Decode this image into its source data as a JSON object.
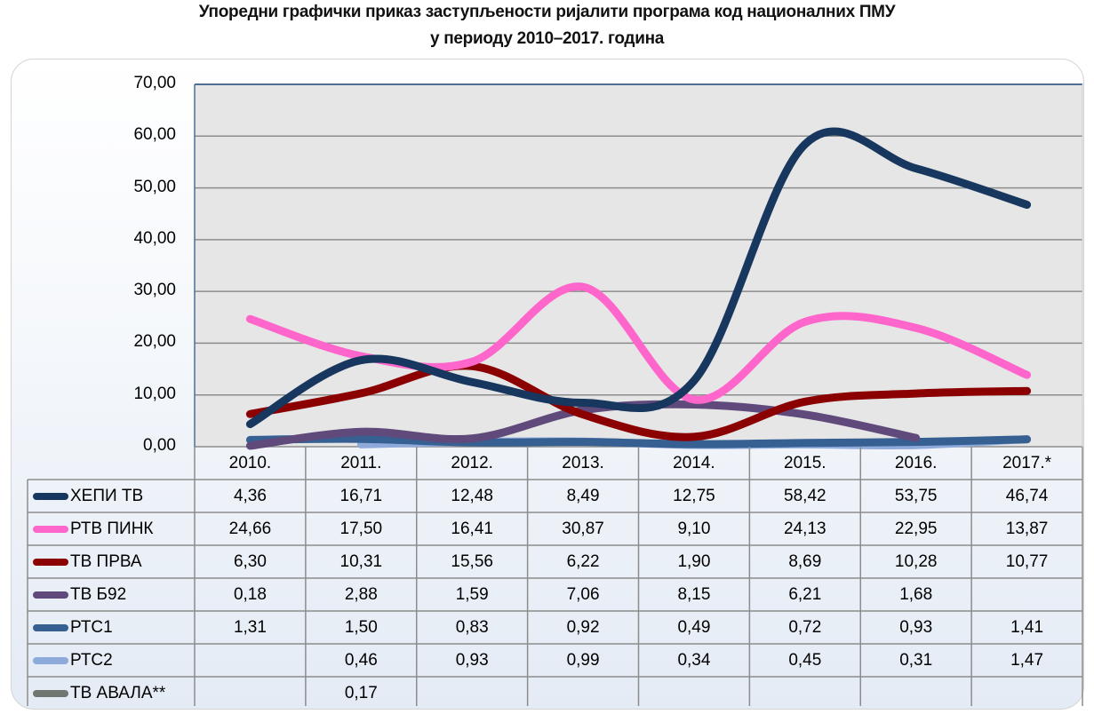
{
  "chart_data": {
    "type": "line",
    "title": "Упоредни графички приказ заступљености ријалити програма код националних ПМУ",
    "subtitle": "у периоду 2010–2017. година",
    "xlabel": "",
    "ylabel": "",
    "ylim": [
      0,
      70
    ],
    "yticks": [
      "0,00",
      "10,00",
      "20,00",
      "30,00",
      "40,00",
      "50,00",
      "60,00",
      "70,00"
    ],
    "ytick_values": [
      0,
      10,
      20,
      30,
      40,
      50,
      60,
      70
    ],
    "grid": true,
    "legend": "data-table-bottom",
    "categories": [
      "2010.",
      "2011.",
      "2012.",
      "2013.",
      "2014.",
      "2015.",
      "2016.",
      "2017.*"
    ],
    "series": [
      {
        "name": "ХЕПИ ТВ",
        "color": "#17375e",
        "values": [
          4.36,
          16.71,
          12.48,
          8.49,
          12.75,
          58.42,
          53.75,
          46.74
        ],
        "labels": [
          "4,36",
          "16,71",
          "12,48",
          "8,49",
          "12,75",
          "58,42",
          "53,75",
          "46,74"
        ]
      },
      {
        "name": "РТВ ПИНК",
        "color": "#ff66cc",
        "values": [
          24.66,
          17.5,
          16.41,
          30.87,
          9.1,
          24.13,
          22.95,
          13.87
        ],
        "labels": [
          "24,66",
          "17,50",
          "16,41",
          "30,87",
          "9,10",
          "24,13",
          "22,95",
          "13,87"
        ]
      },
      {
        "name": "ТВ ПРВА",
        "color": "#8b0000",
        "values": [
          6.3,
          10.31,
          15.56,
          6.22,
          1.9,
          8.69,
          10.28,
          10.77
        ],
        "labels": [
          "6,30",
          "10,31",
          "15,56",
          "6,22",
          "1,90",
          "8,69",
          "10,28",
          "10,77"
        ]
      },
      {
        "name": "ТВ Б92",
        "color": "#604a7b",
        "values": [
          0.18,
          2.88,
          1.59,
          7.06,
          8.15,
          6.21,
          1.68,
          null
        ],
        "labels": [
          "0,18",
          "2,88",
          "1,59",
          "7,06",
          "8,15",
          "6,21",
          "1,68",
          ""
        ]
      },
      {
        "name": "РТС1",
        "color": "#376092",
        "values": [
          1.31,
          1.5,
          0.83,
          0.92,
          0.49,
          0.72,
          0.93,
          1.41
        ],
        "labels": [
          "1,31",
          "1,50",
          "0,83",
          "0,92",
          "0,49",
          "0,72",
          "0,93",
          "1,41"
        ]
      },
      {
        "name": "РТС2",
        "color": "#8eaadb",
        "values": [
          null,
          0.46,
          0.93,
          0.99,
          0.34,
          0.45,
          0.31,
          1.47
        ],
        "labels": [
          "",
          "0,46",
          "0,93",
          "0,99",
          "0,34",
          "0,45",
          "0,31",
          "1,47"
        ]
      },
      {
        "name": "ТВ АВАЛА**",
        "color": "#6f7770",
        "values": [
          null,
          0.17,
          null,
          null,
          null,
          null,
          null,
          null
        ],
        "labels": [
          "",
          "0,17",
          "",
          "",
          "",
          "",
          "",
          ""
        ]
      }
    ]
  }
}
